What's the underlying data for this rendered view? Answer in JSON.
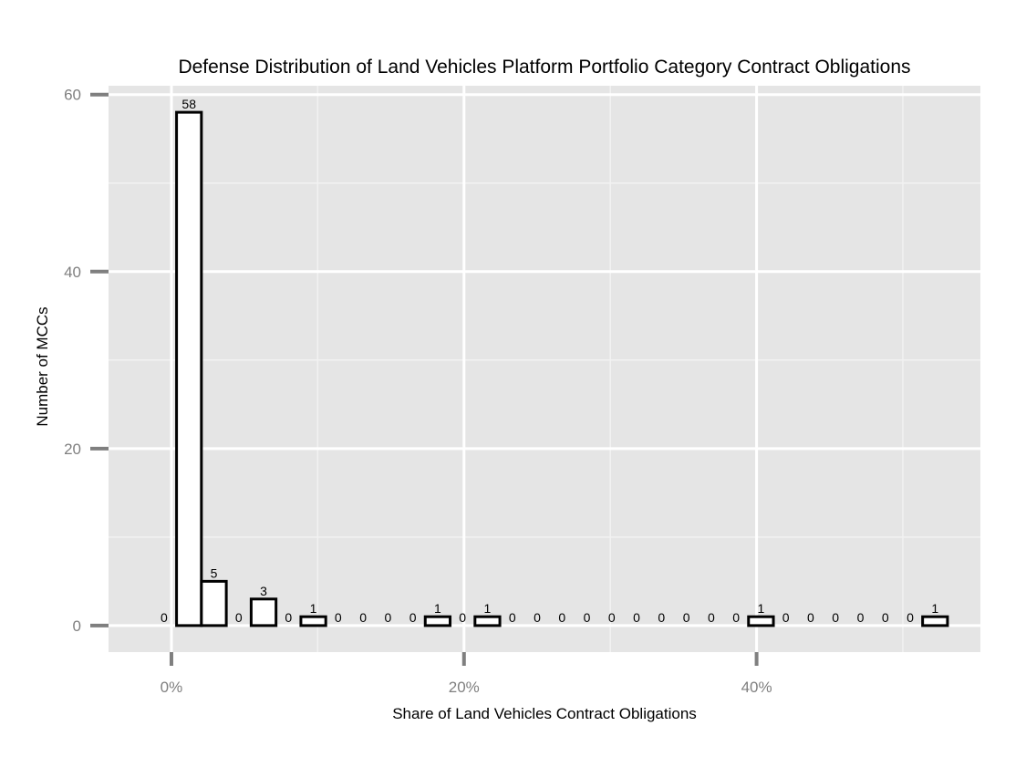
{
  "chart_data": {
    "type": "bar",
    "title": "Defense Distribution of Land  Vehicles Platform Portfolio Category Contract Obligations",
    "xlabel": "Share of Land Vehicles Contract Obligations",
    "ylabel": "Number of MCCs",
    "x_ticks": [
      {
        "value": 0,
        "label": "0%"
      },
      {
        "value": 20,
        "label": "20%"
      },
      {
        "value": 40,
        "label": "40%"
      }
    ],
    "y_ticks": [
      {
        "value": 0,
        "label": "0"
      },
      {
        "value": 20,
        "label": "20"
      },
      {
        "value": 40,
        "label": "40"
      },
      {
        "value": 60,
        "label": "60"
      }
    ],
    "ylim": [
      -3,
      61
    ],
    "xlim": [
      -4.3,
      55.3
    ],
    "bin_width": 1.7,
    "bin_centers": [
      -0.5,
      1.2,
      2.9,
      4.6,
      6.3,
      8.0,
      9.7,
      11.4,
      13.1,
      14.8,
      16.5,
      18.2,
      19.9,
      21.6,
      23.3,
      25.0,
      26.7,
      28.4,
      30.1,
      31.8,
      33.5,
      35.2,
      36.9,
      38.6,
      40.3,
      42.0,
      43.7,
      45.4,
      47.1,
      48.8,
      50.5,
      52.2
    ],
    "values": [
      0,
      58,
      5,
      0,
      3,
      0,
      1,
      0,
      0,
      0,
      0,
      1,
      0,
      1,
      0,
      0,
      0,
      0,
      0,
      0,
      0,
      0,
      0,
      0,
      1,
      0,
      0,
      0,
      0,
      0,
      0,
      1
    ],
    "data_labels": [
      "0",
      "58",
      "5",
      "0",
      "3",
      "0",
      "1",
      "0",
      "0",
      "0",
      "0",
      "1",
      "0",
      "1",
      "0",
      "0",
      "0",
      "0",
      "0",
      "0",
      "0",
      "0",
      "0",
      "0",
      "1",
      "0",
      "0",
      "0",
      "0",
      "0",
      "0",
      "1"
    ],
    "grid": true,
    "legend": "none",
    "colors": {
      "panel_background": "#e5e5e5",
      "grid_major": "#ffffff",
      "grid_minor": "#f2f2f2",
      "bar_fill": "#ffffff",
      "bar_stroke": "#000000",
      "tick_text": "#7f7f7f",
      "tick_mark": "#7f7f7f",
      "text": "#000000"
    }
  }
}
